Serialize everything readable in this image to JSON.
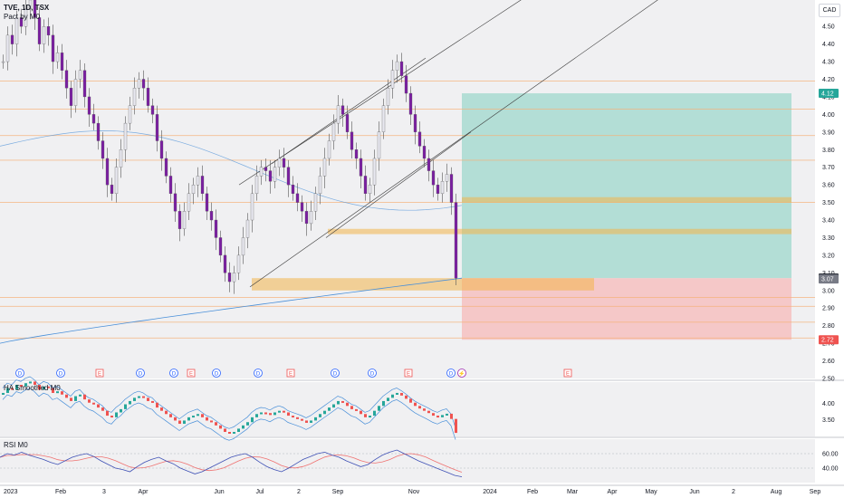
{
  "legend": {
    "symbol": "TVE, 1D, TSX",
    "indicator": "Pact by M0",
    "ha_label": "HA Smoothed M0",
    "rsi_label": "RSI M0"
  },
  "currency": "CAD",
  "colors": {
    "bull": "#26a69a",
    "bear": "#ef5350",
    "candle_body": "#7b1fa2",
    "profit_zone": "#9fd8cc",
    "loss_zone": "#f6c1c1",
    "zone": "#f2b54a",
    "hline": "#f5b27a",
    "ma_blue": "#4a90d9",
    "trendline": "#3a3a3a"
  },
  "price_axis": {
    "ticks": [
      "4.60",
      "4.50",
      "4.40",
      "4.30",
      "4.20",
      "4.10",
      "4.00",
      "3.90",
      "3.80",
      "3.70",
      "3.60",
      "3.50",
      "3.40",
      "3.30",
      "3.20",
      "3.10",
      "3.00",
      "2.90",
      "2.80",
      "2.70",
      "2.60",
      "2.50"
    ],
    "markers": [
      {
        "label": "4.12",
        "price": 4.12,
        "color": "#26a69a"
      },
      {
        "label": "3.07",
        "price": 3.07,
        "color": "#131722"
      },
      {
        "label": "3.07",
        "price": 3.065,
        "color": "#787b86"
      },
      {
        "label": "2.72",
        "price": 2.72,
        "color": "#ef5350"
      }
    ]
  },
  "time_axis": [
    "2023",
    "Feb",
    "3",
    "Apr",
    "Jun",
    "Jul",
    "2",
    "Sep",
    "Nov",
    "2024",
    "Feb",
    "Mar",
    "Apr",
    "May",
    "Jun",
    "2",
    "Aug",
    "Sep"
  ],
  "ha_axis": [
    "4.00",
    "3.50"
  ],
  "rsi_axis": [
    "60.00",
    "40.00"
  ],
  "event_markers": [
    "D",
    "D",
    "E",
    "D",
    "D",
    "E",
    "D",
    "D",
    "E",
    "D",
    "D",
    "E",
    "D",
    "⚡",
    "E"
  ],
  "chart_data": {
    "type": "candlestick",
    "title": "TVE, 1D, TSX",
    "price_range": [
      2.5,
      4.65
    ],
    "horizontal_levels": [
      4.19,
      4.03,
      3.88,
      3.74,
      3.5,
      2.96,
      2.91,
      2.82,
      2.73
    ],
    "support_zones": [
      [
        3.5,
        3.53
      ],
      [
        3.32,
        3.35
      ],
      [
        3.0,
        3.07
      ]
    ],
    "trade": {
      "entry": 3.07,
      "target": 4.12,
      "stop": 2.72
    },
    "ha_range": [
      3.1,
      4.55
    ],
    "rsi_range": [
      20,
      80
    ],
    "close_series": [
      4.3,
      4.45,
      4.4,
      4.55,
      4.5,
      4.6,
      4.65,
      4.55,
      4.4,
      4.5,
      4.45,
      4.3,
      4.35,
      4.25,
      4.15,
      4.05,
      4.2,
      4.25,
      4.1,
      4.0,
      3.95,
      3.85,
      3.75,
      3.6,
      3.55,
      3.7,
      3.8,
      3.95,
      4.05,
      4.15,
      4.2,
      4.15,
      4.05,
      4.0,
      3.85,
      3.75,
      3.65,
      3.55,
      3.45,
      3.35,
      3.45,
      3.55,
      3.6,
      3.65,
      3.55,
      3.45,
      3.4,
      3.3,
      3.2,
      3.1,
      3.05,
      3.1,
      3.2,
      3.3,
      3.4,
      3.55,
      3.65,
      3.7,
      3.68,
      3.62,
      3.7,
      3.75,
      3.7,
      3.6,
      3.55,
      3.5,
      3.45,
      3.38,
      3.45,
      3.55,
      3.65,
      3.75,
      3.85,
      3.95,
      4.05,
      4.0,
      3.9,
      3.8,
      3.75,
      3.65,
      3.55,
      3.6,
      3.75,
      3.9,
      4.05,
      4.15,
      4.25,
      4.3,
      4.22,
      4.12,
      4.0,
      3.9,
      3.82,
      3.75,
      3.68,
      3.6,
      3.55,
      3.62,
      3.66,
      3.5,
      3.07
    ],
    "rsi_series": [
      55,
      60,
      58,
      62,
      58,
      55,
      52,
      48,
      45,
      50,
      55,
      58,
      60,
      56,
      50,
      45,
      40,
      38,
      35,
      42,
      48,
      52,
      55,
      50,
      46,
      40,
      36,
      32,
      35,
      40,
      45,
      50,
      55,
      58,
      60,
      55,
      48,
      42,
      38,
      35,
      40,
      46,
      52,
      56,
      60,
      62,
      58,
      55,
      50,
      46,
      42,
      45,
      52,
      58,
      62,
      65,
      60,
      55,
      50,
      46,
      42,
      38,
      34,
      30,
      28
    ]
  }
}
